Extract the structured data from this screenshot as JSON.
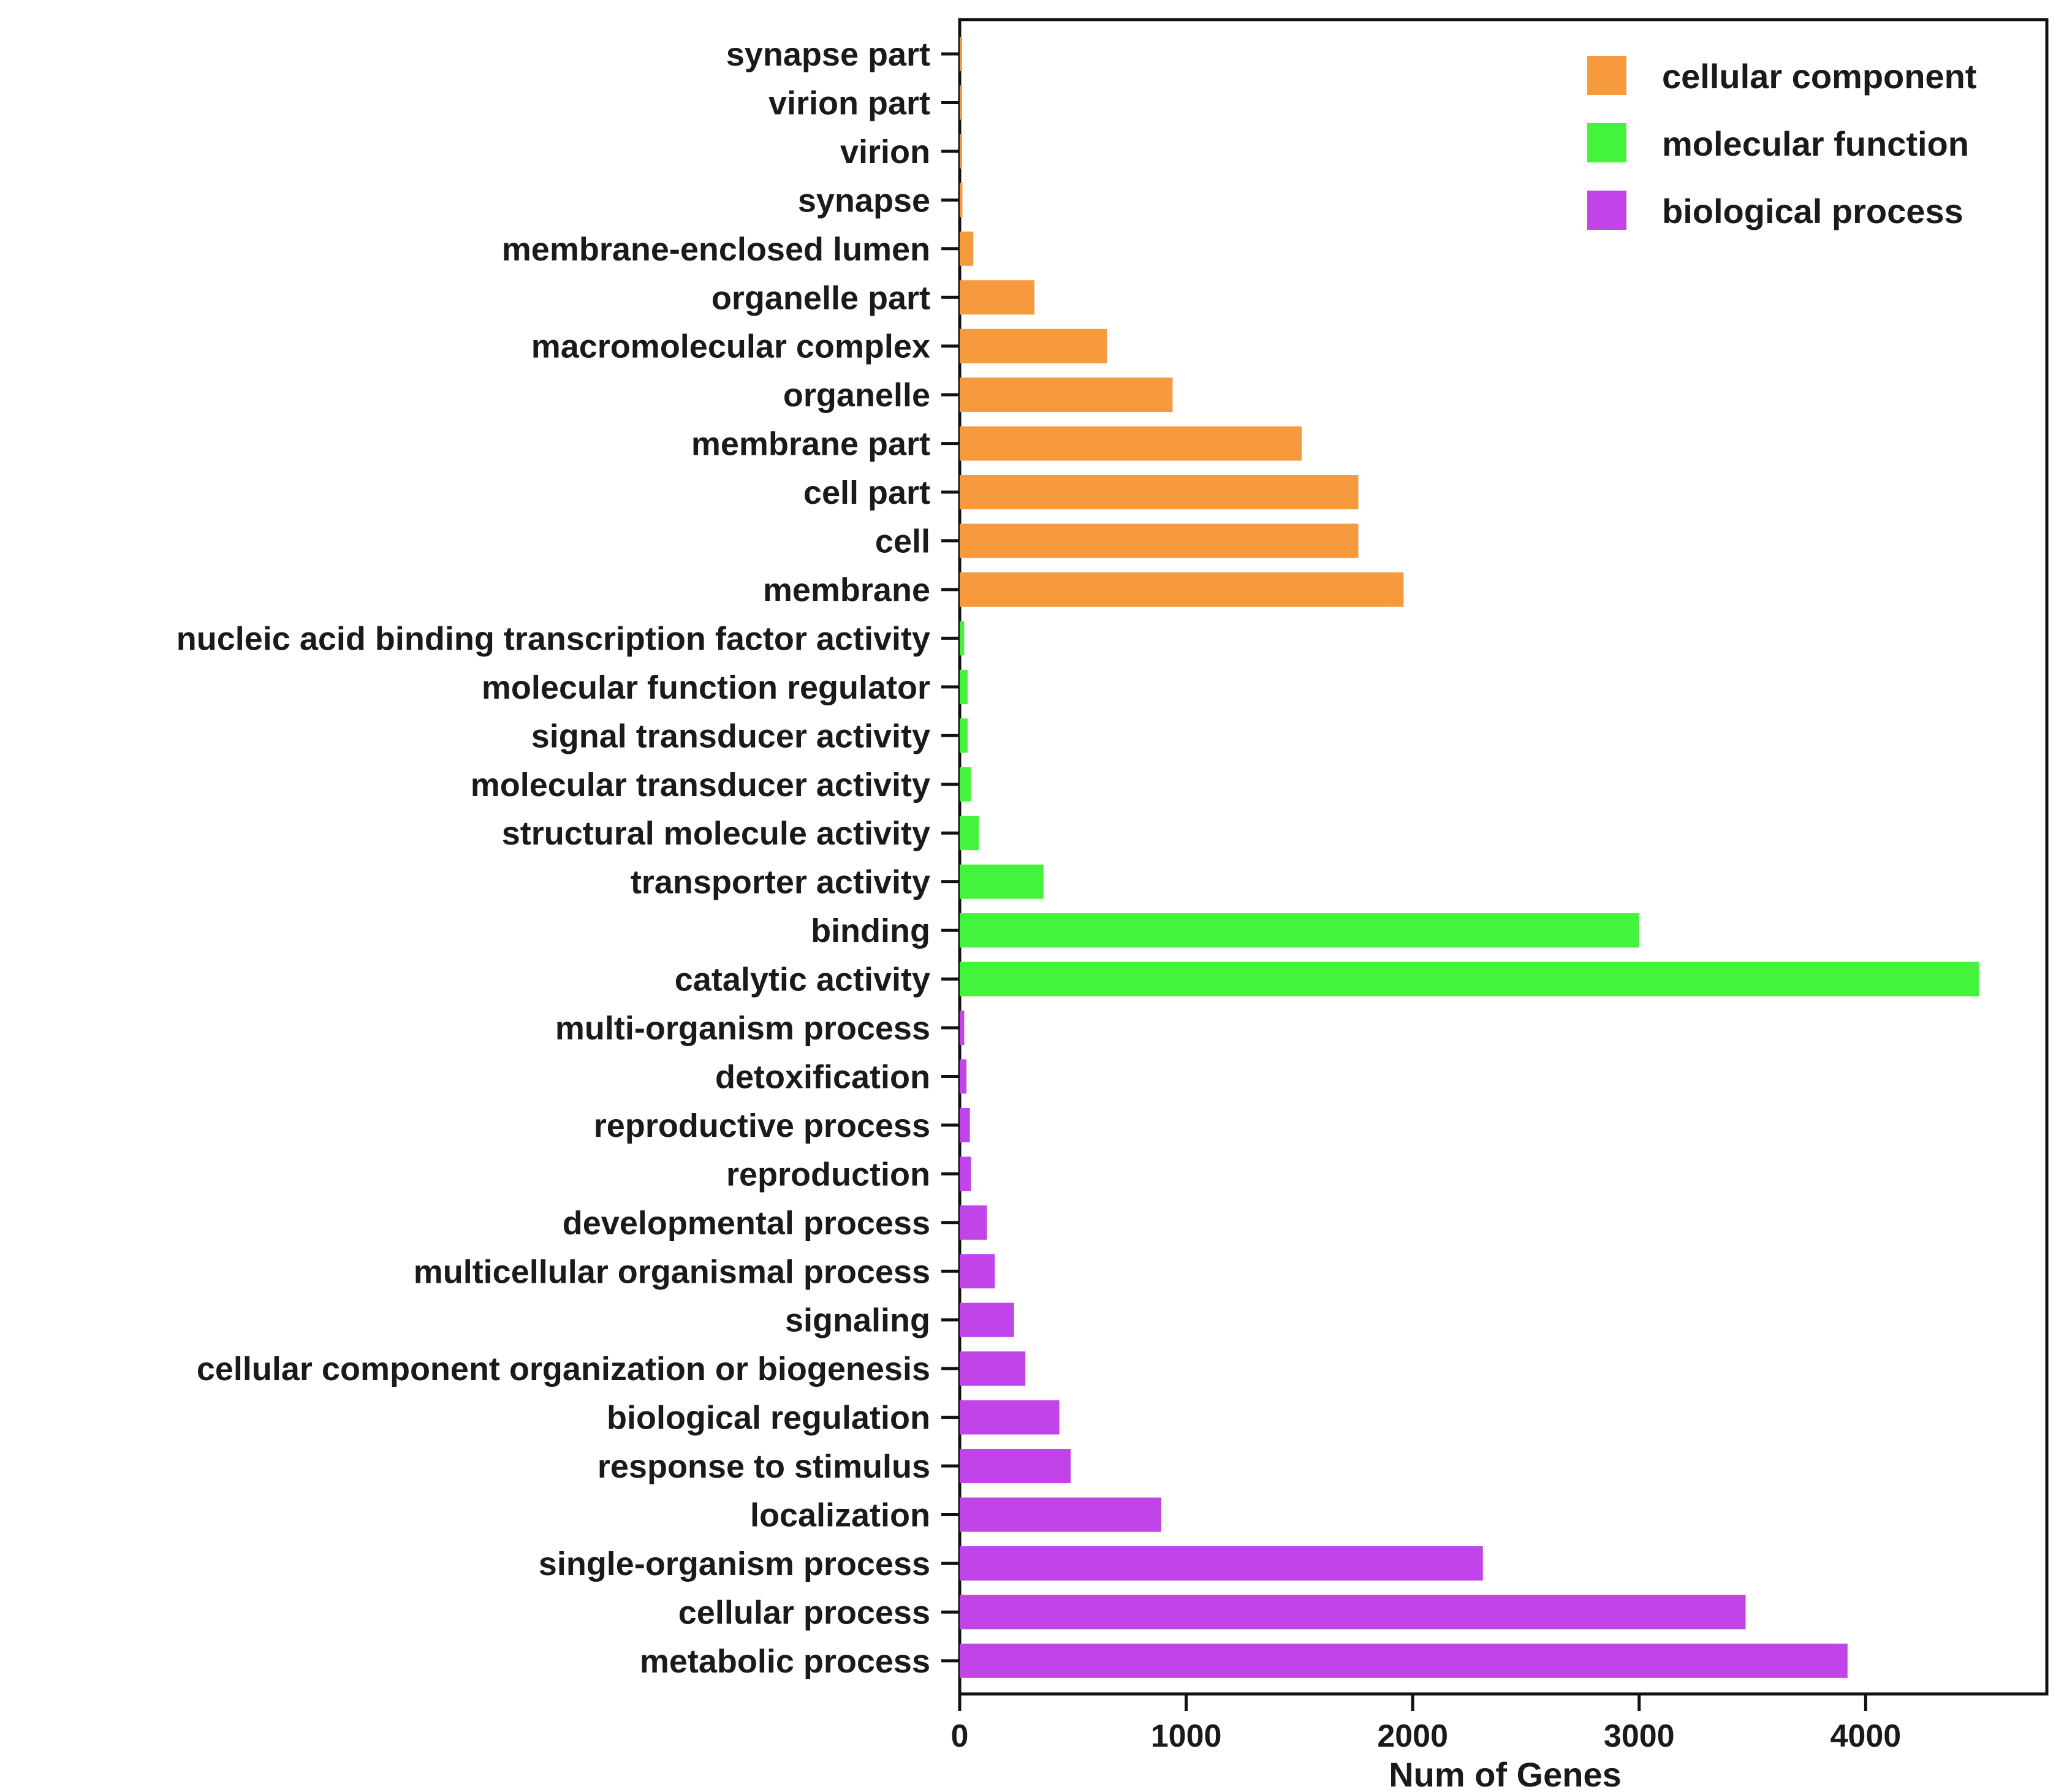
{
  "chart_data": {
    "type": "bar",
    "orientation": "horizontal",
    "title": "",
    "xlabel": "Num of Genes",
    "ylabel": "",
    "xlim": [
      0,
      4800
    ],
    "xticks": [
      0,
      1000,
      2000,
      3000,
      4000
    ],
    "xtick_labels": [
      "0",
      "1000",
      "2000",
      "3000",
      "4000"
    ],
    "grid": false,
    "legend_position": "top-right",
    "series": [
      {
        "name": "cellular component",
        "color": "#f7993d"
      },
      {
        "name": "molecular function",
        "color": "#44f43c"
      },
      {
        "name": "biological process",
        "color": "#c044e8"
      }
    ],
    "bars": [
      {
        "label": "synapse part",
        "value": 10,
        "series": "cellular component"
      },
      {
        "label": "virion part",
        "value": 10,
        "series": "cellular component"
      },
      {
        "label": "virion",
        "value": 10,
        "series": "cellular component"
      },
      {
        "label": "synapse",
        "value": 12,
        "series": "cellular component"
      },
      {
        "label": "membrane-enclosed lumen",
        "value": 60,
        "series": "cellular component"
      },
      {
        "label": "organelle part",
        "value": 330,
        "series": "cellular component"
      },
      {
        "label": "macromolecular complex",
        "value": 650,
        "series": "cellular component"
      },
      {
        "label": "organelle",
        "value": 940,
        "series": "cellular component"
      },
      {
        "label": "membrane part",
        "value": 1510,
        "series": "cellular component"
      },
      {
        "label": "cell part",
        "value": 1760,
        "series": "cellular component"
      },
      {
        "label": "cell",
        "value": 1760,
        "series": "cellular component"
      },
      {
        "label": "membrane",
        "value": 1960,
        "series": "cellular component"
      },
      {
        "label": "nucleic acid binding transcription factor activity",
        "value": 20,
        "series": "molecular function"
      },
      {
        "label": "molecular function regulator",
        "value": 35,
        "series": "molecular function"
      },
      {
        "label": "signal transducer activity",
        "value": 35,
        "series": "molecular function"
      },
      {
        "label": "molecular transducer activity",
        "value": 50,
        "series": "molecular function"
      },
      {
        "label": "structural molecule activity",
        "value": 85,
        "series": "molecular function"
      },
      {
        "label": "transporter activity",
        "value": 370,
        "series": "molecular function"
      },
      {
        "label": "binding",
        "value": 3000,
        "series": "molecular function"
      },
      {
        "label": "catalytic activity",
        "value": 4500,
        "series": "molecular function"
      },
      {
        "label": "multi-organism process",
        "value": 20,
        "series": "biological process"
      },
      {
        "label": "detoxification",
        "value": 30,
        "series": "biological process"
      },
      {
        "label": "reproductive process",
        "value": 45,
        "series": "biological process"
      },
      {
        "label": "reproduction",
        "value": 50,
        "series": "biological process"
      },
      {
        "label": "developmental process",
        "value": 120,
        "series": "biological process"
      },
      {
        "label": "multicellular organismal process",
        "value": 155,
        "series": "biological process"
      },
      {
        "label": "signaling",
        "value": 240,
        "series": "biological process"
      },
      {
        "label": "cellular component organization or biogenesis",
        "value": 290,
        "series": "biological process"
      },
      {
        "label": "biological regulation",
        "value": 440,
        "series": "biological process"
      },
      {
        "label": "response to stimulus",
        "value": 490,
        "series": "biological process"
      },
      {
        "label": "localization",
        "value": 890,
        "series": "biological process"
      },
      {
        "label": "single-organism process",
        "value": 2310,
        "series": "biological process"
      },
      {
        "label": "cellular process",
        "value": 3470,
        "series": "biological process"
      },
      {
        "label": "metabolic process",
        "value": 3920,
        "series": "biological process"
      }
    ]
  }
}
